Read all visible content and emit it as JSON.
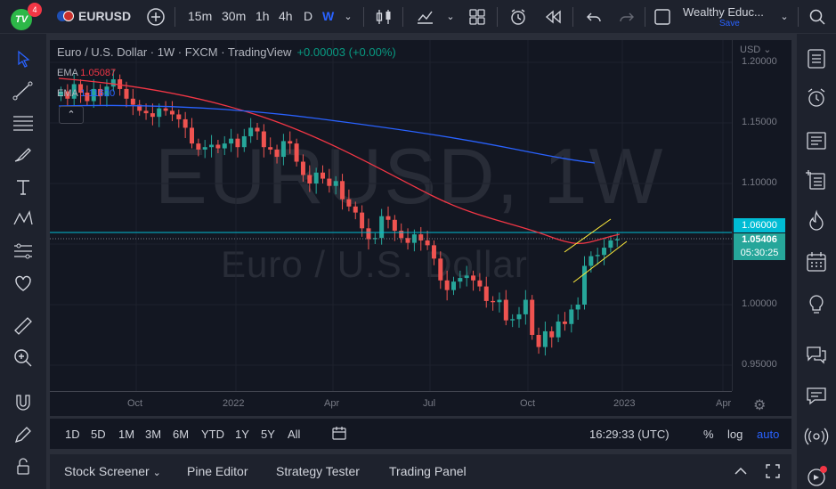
{
  "topbar": {
    "logo_text": "TV",
    "notifications": "4",
    "symbol": "EURUSD",
    "timeframes": [
      "15m",
      "30m",
      "1h",
      "4h",
      "D",
      "W"
    ],
    "active_timeframe": "W",
    "layout_name": "Wealthy Educ...",
    "save_label": "Save"
  },
  "chart": {
    "title": "Euro / U.S. Dollar · 1W · FXCM · TradingView",
    "change": "+0.00003 (+0.00%)",
    "ema1_label": "EMA",
    "ema1_value": "1.05087",
    "ema2_label": "EMA",
    "ema2_value": "1.11620",
    "watermark_symbol": "EURUSD, 1W",
    "watermark_desc": "Euro / U.S. Dollar",
    "currency": "USD",
    "price_ticks": [
      "1.20000",
      "1.15000",
      "1.10000",
      "1.05000",
      "1.00000",
      "0.95000"
    ],
    "line_price": "1.06000",
    "last_price": "1.05406",
    "countdown": "05:30:25",
    "time_ticks": [
      "Oct",
      "2022",
      "Apr",
      "Jul",
      "Oct",
      "2023",
      "Apr"
    ],
    "colors": {
      "up": "#26a69a",
      "down": "#ef5350",
      "ema_fast": "#f23645",
      "ema_slow": "#2962ff",
      "hline": "#00bcd4",
      "channel": "#ffeb3b"
    }
  },
  "chart_data": {
    "type": "candlestick",
    "timeframe": "1W",
    "symbol": "EURUSD",
    "y_axis_ticks": [
      0.95,
      1.0,
      1.05,
      1.1,
      1.15,
      1.2
    ],
    "horizontal_line": 1.06,
    "last_price": 1.05406,
    "ema_fast": 1.05087,
    "ema_slow": 1.1162
  },
  "ranges": [
    "1D",
    "5D",
    "1M",
    "3M",
    "6M",
    "YTD",
    "1Y",
    "5Y",
    "All"
  ],
  "clock": "16:29:33 (UTC)",
  "axis_options": {
    "percent": "%",
    "log": "log",
    "auto": "auto"
  },
  "bottom_tabs": [
    "Stock Screener",
    "Pine Editor",
    "Strategy Tester",
    "Trading Panel"
  ]
}
